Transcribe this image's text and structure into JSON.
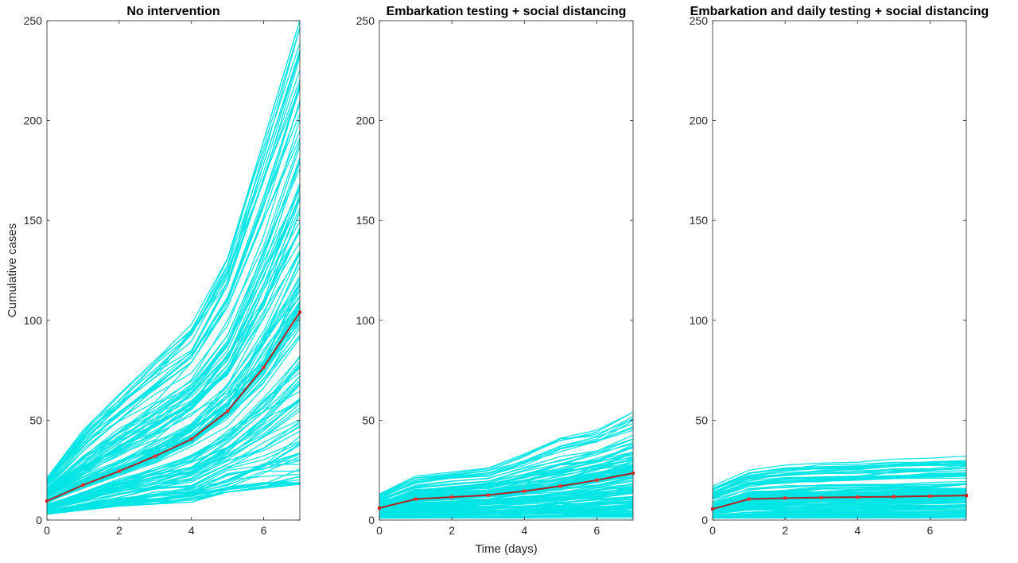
{
  "chart_data": [
    {
      "type": "line",
      "title": "No intervention",
      "xlabel": "",
      "ylabel": "Cumulative cases",
      "xlim": [
        0,
        7
      ],
      "ylim": [
        0,
        250
      ],
      "xticks": [
        0,
        2,
        4,
        6
      ],
      "yticks": [
        0,
        50,
        100,
        150,
        200,
        250
      ],
      "grid": false,
      "simulation_color": "#00e5e5",
      "mean_color": "#b22222",
      "marker_color": "#ff2a2a",
      "simulation_range": {
        "x": [
          0,
          1,
          2,
          3,
          4,
          5,
          6,
          7
        ],
        "min": [
          3,
          5,
          7,
          8,
          9,
          14,
          16,
          18
        ],
        "max": [
          21,
          45,
          63,
          80,
          98,
          131,
          190,
          250
        ]
      },
      "series": [
        {
          "x": [
            0,
            1,
            2,
            3,
            4,
            5,
            6,
            7
          ],
          "values": [
            9.5,
            17.5,
            24.5,
            32,
            40.5,
            54.5,
            76.5,
            104
          ]
        }
      ]
    },
    {
      "type": "line",
      "title": "Embarkation testing + social distancing",
      "xlabel": "Time (days)",
      "ylabel": "",
      "xlim": [
        0,
        7
      ],
      "ylim": [
        0,
        250
      ],
      "xticks": [
        0,
        2,
        4,
        6
      ],
      "yticks": [
        0,
        50,
        100,
        150,
        200,
        250
      ],
      "grid": false,
      "simulation_color": "#00e5e5",
      "mean_color": "#b22222",
      "marker_color": "#ff2a2a",
      "simulation_range": {
        "x": [
          0,
          1,
          2,
          3,
          4,
          5,
          6,
          7
        ],
        "min": [
          1,
          1,
          1,
          1,
          1,
          1,
          1,
          1
        ],
        "max": [
          13,
          22,
          24,
          26,
          33,
          41,
          45,
          54
        ]
      },
      "series": [
        {
          "x": [
            0,
            1,
            2,
            3,
            4,
            5,
            6,
            7
          ],
          "values": [
            6,
            10.5,
            11.5,
            12.5,
            14.5,
            17,
            20,
            23.5
          ]
        }
      ]
    },
    {
      "type": "line",
      "title": "Embarkation and daily testing + social distancing",
      "xlabel": "",
      "ylabel": "",
      "xlim": [
        0,
        7
      ],
      "ylim": [
        0,
        250
      ],
      "xticks": [
        0,
        2,
        4,
        6
      ],
      "yticks": [
        0,
        50,
        100,
        150,
        200,
        250
      ],
      "grid": false,
      "simulation_color": "#00e5e5",
      "mean_color": "#b22222",
      "marker_color": "#ff2a2a",
      "simulation_range": {
        "x": [
          0,
          1,
          2,
          3,
          4,
          5,
          6,
          7
        ],
        "min": [
          1,
          1,
          1,
          1,
          1,
          1,
          1,
          1
        ],
        "max": [
          17,
          25,
          27.5,
          28.5,
          29,
          30.5,
          31,
          32
        ]
      },
      "series": [
        {
          "x": [
            0,
            1,
            2,
            3,
            4,
            5,
            6,
            7
          ],
          "values": [
            5.5,
            10.5,
            11,
            11.3,
            11.5,
            11.7,
            12,
            12.3
          ]
        }
      ]
    }
  ]
}
